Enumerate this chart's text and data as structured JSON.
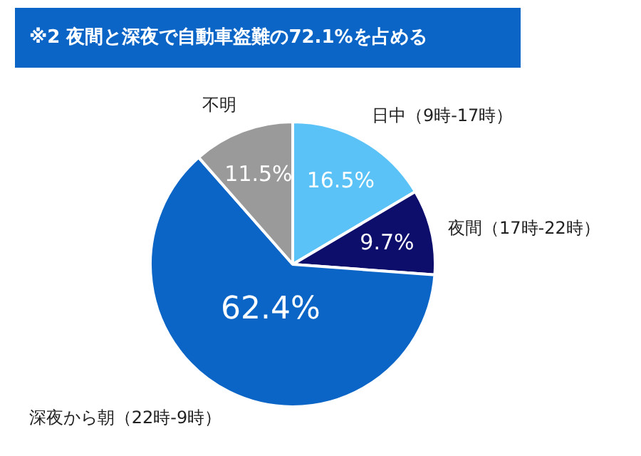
{
  "chart_data": {
    "type": "pie",
    "title": "※2  夜間と深夜で自動車盗難の72.1%を占める",
    "categories": [
      "日中（9時-17時）",
      "夜間（17時-22時）",
      "深夜から朝（22時-9時）",
      "不明"
    ],
    "values": [
      16.5,
      9.7,
      62.4,
      11.5
    ],
    "colors": [
      "#5bc2f7",
      "#0d0d6b",
      "#0a65c6",
      "#9a9a9a"
    ],
    "value_labels": [
      "16.5%",
      "9.7%",
      "62.4%",
      "11.5%"
    ],
    "legend": false
  }
}
